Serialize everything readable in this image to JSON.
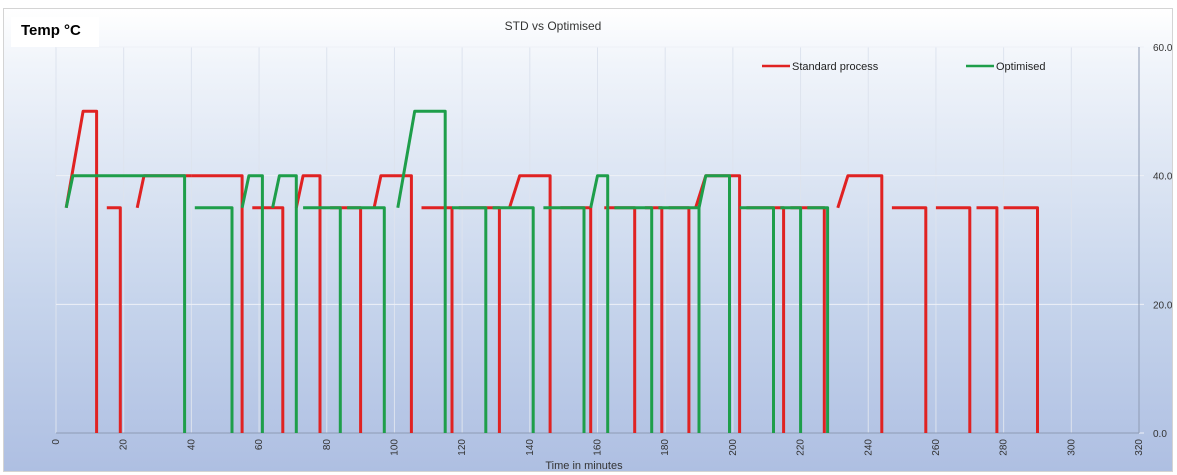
{
  "chart_data": {
    "type": "line",
    "title": "STD vs Optimised",
    "ylabel": "Temp °C",
    "xlabel": "Time in minutes",
    "xlim": [
      0,
      320
    ],
    "ylim": [
      0,
      60
    ],
    "x_ticks": [
      0,
      20,
      40,
      60,
      80,
      100,
      120,
      140,
      160,
      180,
      200,
      220,
      240,
      260,
      280,
      300,
      320
    ],
    "y_ticks": [
      "0.0",
      "20.0",
      "40.0",
      "60.0"
    ],
    "y_axis_side": "right",
    "x_tick_rotation": "vertical",
    "grid": true,
    "legend_position": "top-right",
    "series": [
      {
        "name": "Standard process",
        "color": "#e02222",
        "segments": [
          [
            [
              3,
              35
            ],
            [
              8,
              50
            ],
            [
              12,
              50
            ],
            [
              12,
              0
            ]
          ],
          [
            [
              15,
              35
            ],
            [
              19,
              35
            ],
            [
              19,
              0
            ]
          ],
          [
            [
              24,
              35
            ],
            [
              26,
              40
            ],
            [
              40,
              40
            ]
          ],
          [
            [
              40,
              40
            ],
            [
              55,
              40
            ],
            [
              55,
              0
            ]
          ],
          [
            [
              58,
              35
            ],
            [
              67,
              35
            ],
            [
              67,
              0
            ]
          ],
          [
            [
              71,
              35
            ],
            [
              73,
              40
            ],
            [
              78,
              40
            ],
            [
              78,
              0
            ]
          ],
          [
            [
              81,
              35
            ],
            [
              90,
              35
            ],
            [
              90,
              0
            ]
          ],
          [
            [
              94,
              35
            ],
            [
              96,
              40
            ],
            [
              105,
              40
            ],
            [
              105,
              0
            ]
          ],
          [
            [
              108,
              35
            ],
            [
              117,
              35
            ],
            [
              117,
              0
            ]
          ],
          [
            [
              119,
              35
            ],
            [
              131,
              35
            ],
            [
              131,
              0
            ]
          ],
          [
            [
              134,
              35
            ],
            [
              137,
              40
            ],
            [
              146,
              40
            ],
            [
              146,
              0
            ]
          ],
          [
            [
              149,
              35
            ],
            [
              158,
              35
            ],
            [
              158,
              0
            ]
          ],
          [
            [
              162,
              35
            ],
            [
              171,
              35
            ],
            [
              171,
              0
            ]
          ],
          [
            [
              174,
              35
            ],
            [
              179,
              35
            ],
            [
              179,
              0
            ]
          ],
          [
            [
              181,
              35
            ],
            [
              187,
              35
            ],
            [
              187,
              0
            ]
          ],
          [
            [
              189,
              35
            ],
            [
              192,
              40
            ],
            [
              202,
              40
            ],
            [
              202,
              0
            ]
          ],
          [
            [
              204,
              35
            ],
            [
              215,
              35
            ],
            [
              215,
              0
            ]
          ],
          [
            [
              217,
              35
            ],
            [
              227,
              35
            ],
            [
              227,
              0
            ]
          ],
          [
            [
              231,
              35
            ],
            [
              234,
              40
            ],
            [
              244,
              40
            ],
            [
              244,
              0
            ]
          ],
          [
            [
              247,
              35
            ],
            [
              257,
              35
            ],
            [
              257,
              0
            ]
          ],
          [
            [
              260,
              35
            ],
            [
              270,
              35
            ],
            [
              270,
              0
            ]
          ],
          [
            [
              272,
              35
            ],
            [
              278,
              35
            ],
            [
              278,
              0
            ]
          ],
          [
            [
              280,
              35
            ],
            [
              290,
              35
            ],
            [
              290,
              0
            ]
          ]
        ]
      },
      {
        "name": "Optimised",
        "color": "#1e9e4a",
        "segments": [
          [
            [
              3,
              35
            ],
            [
              5,
              40
            ],
            [
              38,
              40
            ],
            [
              38,
              0
            ]
          ],
          [
            [
              41,
              35
            ],
            [
              52,
              35
            ],
            [
              52,
              0
            ]
          ],
          [
            [
              55,
              35
            ],
            [
              57,
              40
            ],
            [
              61,
              40
            ],
            [
              61,
              0
            ]
          ],
          [
            [
              64,
              35
            ],
            [
              66,
              40
            ],
            [
              71,
              40
            ],
            [
              71,
              0
            ]
          ],
          [
            [
              73,
              35
            ],
            [
              84,
              35
            ],
            [
              84,
              0
            ]
          ],
          [
            [
              86,
              35
            ],
            [
              97,
              35
            ],
            [
              97,
              0
            ]
          ],
          [
            [
              101,
              35
            ],
            [
              106,
              50
            ],
            [
              115,
              50
            ],
            [
              115,
              0
            ]
          ],
          [
            [
              117,
              35
            ],
            [
              127,
              35
            ],
            [
              127,
              0
            ]
          ],
          [
            [
              129,
              35
            ],
            [
              141,
              35
            ],
            [
              141,
              0
            ]
          ],
          [
            [
              144,
              35
            ],
            [
              156,
              35
            ],
            [
              156,
              0
            ]
          ],
          [
            [
              158,
              35
            ],
            [
              160,
              40
            ],
            [
              163,
              40
            ],
            [
              163,
              0
            ]
          ],
          [
            [
              165,
              35
            ],
            [
              176,
              35
            ],
            [
              176,
              0
            ]
          ],
          [
            [
              178,
              35
            ],
            [
              190,
              35
            ],
            [
              190,
              0
            ]
          ],
          [
            [
              190,
              35
            ],
            [
              192,
              40
            ],
            [
              199,
              40
            ],
            [
              199,
              0
            ]
          ],
          [
            [
              202,
              35
            ],
            [
              212,
              35
            ],
            [
              212,
              0
            ]
          ],
          [
            [
              214,
              35
            ],
            [
              220,
              35
            ],
            [
              220,
              0
            ]
          ],
          [
            [
              222,
              35
            ],
            [
              228,
              35
            ],
            [
              228,
              0
            ]
          ]
        ]
      }
    ]
  }
}
